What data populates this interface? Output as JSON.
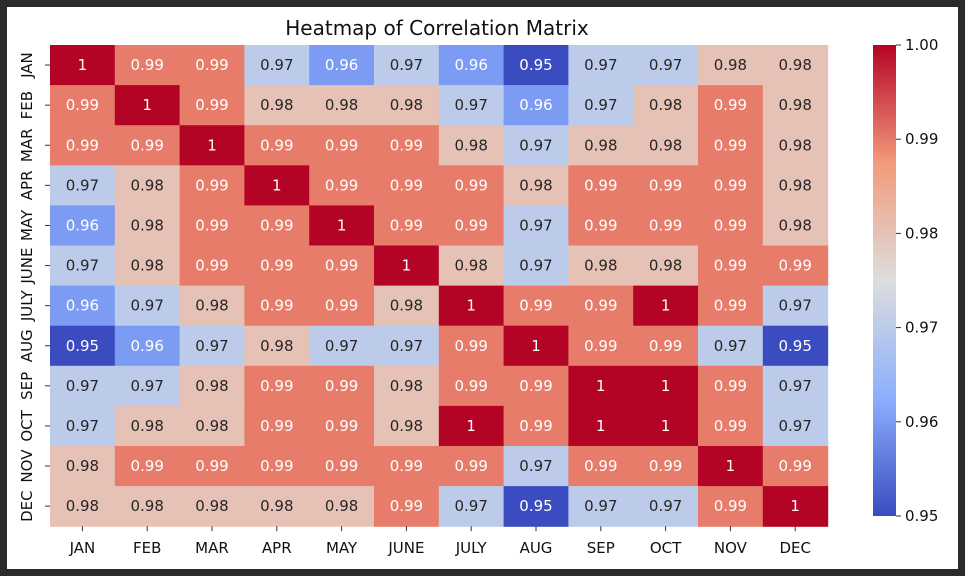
{
  "chart_data": {
    "type": "heatmap",
    "title": "Heatmap of Correlation Matrix",
    "xlabel": "",
    "ylabel": "",
    "x_categories": [
      "JAN",
      "FEB",
      "MAR",
      "APR",
      "MAY",
      "JUNE",
      "JULY",
      "AUG",
      "SEP",
      "OCT",
      "NOV",
      "DEC"
    ],
    "y_categories": [
      "JAN",
      "FEB",
      "MAR",
      "APR",
      "MAY",
      "JUNE",
      "JULY",
      "AUG",
      "SEP",
      "OCT",
      "NOV",
      "DEC"
    ],
    "values": [
      [
        1.0,
        0.99,
        0.99,
        0.97,
        0.96,
        0.97,
        0.96,
        0.95,
        0.97,
        0.97,
        0.98,
        0.98
      ],
      [
        0.99,
        1.0,
        0.99,
        0.98,
        0.98,
        0.98,
        0.97,
        0.96,
        0.97,
        0.98,
        0.99,
        0.98
      ],
      [
        0.99,
        0.99,
        1.0,
        0.99,
        0.99,
        0.99,
        0.98,
        0.97,
        0.98,
        0.98,
        0.99,
        0.98
      ],
      [
        0.97,
        0.98,
        0.99,
        1.0,
        0.99,
        0.99,
        0.99,
        0.98,
        0.99,
        0.99,
        0.99,
        0.98
      ],
      [
        0.96,
        0.98,
        0.99,
        0.99,
        1.0,
        0.99,
        0.99,
        0.97,
        0.99,
        0.99,
        0.99,
        0.98
      ],
      [
        0.97,
        0.98,
        0.99,
        0.99,
        0.99,
        1.0,
        0.98,
        0.97,
        0.98,
        0.98,
        0.99,
        0.99
      ],
      [
        0.96,
        0.97,
        0.98,
        0.99,
        0.99,
        0.98,
        1.0,
        0.99,
        0.99,
        1.0,
        0.99,
        0.97
      ],
      [
        0.95,
        0.96,
        0.97,
        0.98,
        0.97,
        0.97,
        0.99,
        1.0,
        0.99,
        0.99,
        0.97,
        0.95
      ],
      [
        0.97,
        0.97,
        0.98,
        0.99,
        0.99,
        0.98,
        0.99,
        0.99,
        1.0,
        1.0,
        0.99,
        0.97
      ],
      [
        0.97,
        0.98,
        0.98,
        0.99,
        0.99,
        0.98,
        1.0,
        0.99,
        1.0,
        1.0,
        0.99,
        0.97
      ],
      [
        0.98,
        0.99,
        0.99,
        0.99,
        0.99,
        0.99,
        0.99,
        0.97,
        0.99,
        0.99,
        1.0,
        0.99
      ],
      [
        0.98,
        0.98,
        0.98,
        0.98,
        0.98,
        0.99,
        0.97,
        0.95,
        0.97,
        0.97,
        0.99,
        1.0
      ]
    ],
    "cell_labels": [
      [
        "1",
        "0.99",
        "0.99",
        "0.97",
        "0.96",
        "0.97",
        "0.96",
        "0.95",
        "0.97",
        "0.97",
        "0.98",
        "0.98"
      ],
      [
        "0.99",
        "1",
        "0.99",
        "0.98",
        "0.98",
        "0.98",
        "0.97",
        "0.96",
        "0.97",
        "0.98",
        "0.99",
        "0.98"
      ],
      [
        "0.99",
        "0.99",
        "1",
        "0.99",
        "0.99",
        "0.99",
        "0.98",
        "0.97",
        "0.98",
        "0.98",
        "0.99",
        "0.98"
      ],
      [
        "0.97",
        "0.98",
        "0.99",
        "1",
        "0.99",
        "0.99",
        "0.99",
        "0.98",
        "0.99",
        "0.99",
        "0.99",
        "0.98"
      ],
      [
        "0.96",
        "0.98",
        "0.99",
        "0.99",
        "1",
        "0.99",
        "0.99",
        "0.97",
        "0.99",
        "0.99",
        "0.99",
        "0.98"
      ],
      [
        "0.97",
        "0.98",
        "0.99",
        "0.99",
        "0.99",
        "1",
        "0.98",
        "0.97",
        "0.98",
        "0.98",
        "0.99",
        "0.99"
      ],
      [
        "0.96",
        "0.97",
        "0.98",
        "0.99",
        "0.99",
        "0.98",
        "1",
        "0.99",
        "0.99",
        "1",
        "0.99",
        "0.97"
      ],
      [
        "0.95",
        "0.96",
        "0.97",
        "0.98",
        "0.97",
        "0.97",
        "0.99",
        "1",
        "0.99",
        "0.99",
        "0.97",
        "0.95"
      ],
      [
        "0.97",
        "0.97",
        "0.98",
        "0.99",
        "0.99",
        "0.98",
        "0.99",
        "0.99",
        "1",
        "1",
        "0.99",
        "0.97"
      ],
      [
        "0.97",
        "0.98",
        "0.98",
        "0.99",
        "0.99",
        "0.98",
        "1",
        "0.99",
        "1",
        "1",
        "0.99",
        "0.97"
      ],
      [
        "0.98",
        "0.99",
        "0.99",
        "0.99",
        "0.99",
        "0.99",
        "0.99",
        "0.97",
        "0.99",
        "0.99",
        "1",
        "0.99"
      ],
      [
        "0.98",
        "0.98",
        "0.98",
        "0.98",
        "0.98",
        "0.99",
        "0.97",
        "0.95",
        "0.97",
        "0.97",
        "0.99",
        "1"
      ]
    ],
    "colormap": "coolwarm",
    "colorbar": {
      "range": [
        0.95,
        1.0
      ],
      "ticks": [
        "0.95",
        "0.96",
        "0.97",
        "0.98",
        "0.99",
        "1.00"
      ],
      "tick_values": [
        0.95,
        0.96,
        0.97,
        0.98,
        0.99,
        1.0
      ]
    },
    "colors": {
      "low": "#3b4cc0",
      "mid": "#dddddd",
      "high": "#b40426"
    }
  }
}
